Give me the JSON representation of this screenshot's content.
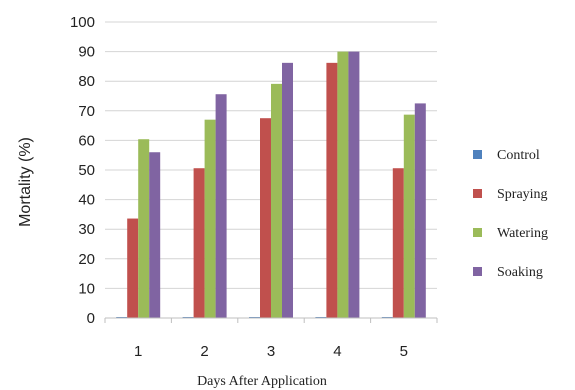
{
  "chart_data": {
    "type": "bar",
    "title": "",
    "xlabel": "Days After Application",
    "ylabel": "Mortality (%)",
    "ylim": [
      0,
      100
    ],
    "ytick_step": 10,
    "grid": true,
    "legend_position": "right",
    "categories": [
      "1",
      "2",
      "3",
      "4",
      "5"
    ],
    "series": [
      {
        "name": "Control",
        "color": "#4f81bd",
        "values": [
          0,
          0,
          0,
          0,
          0
        ]
      },
      {
        "name": "Spraying",
        "color": "#c0504d",
        "values": [
          33.6,
          50.6,
          67.5,
          86.2,
          50.6
        ]
      },
      {
        "name": "Watering",
        "color": "#9bbb59",
        "values": [
          60.4,
          67.0,
          79.1,
          90.0,
          68.7
        ]
      },
      {
        "name": "Soaking",
        "color": "#8064a2",
        "values": [
          56.0,
          75.6,
          86.2,
          90.0,
          72.5
        ]
      }
    ]
  }
}
